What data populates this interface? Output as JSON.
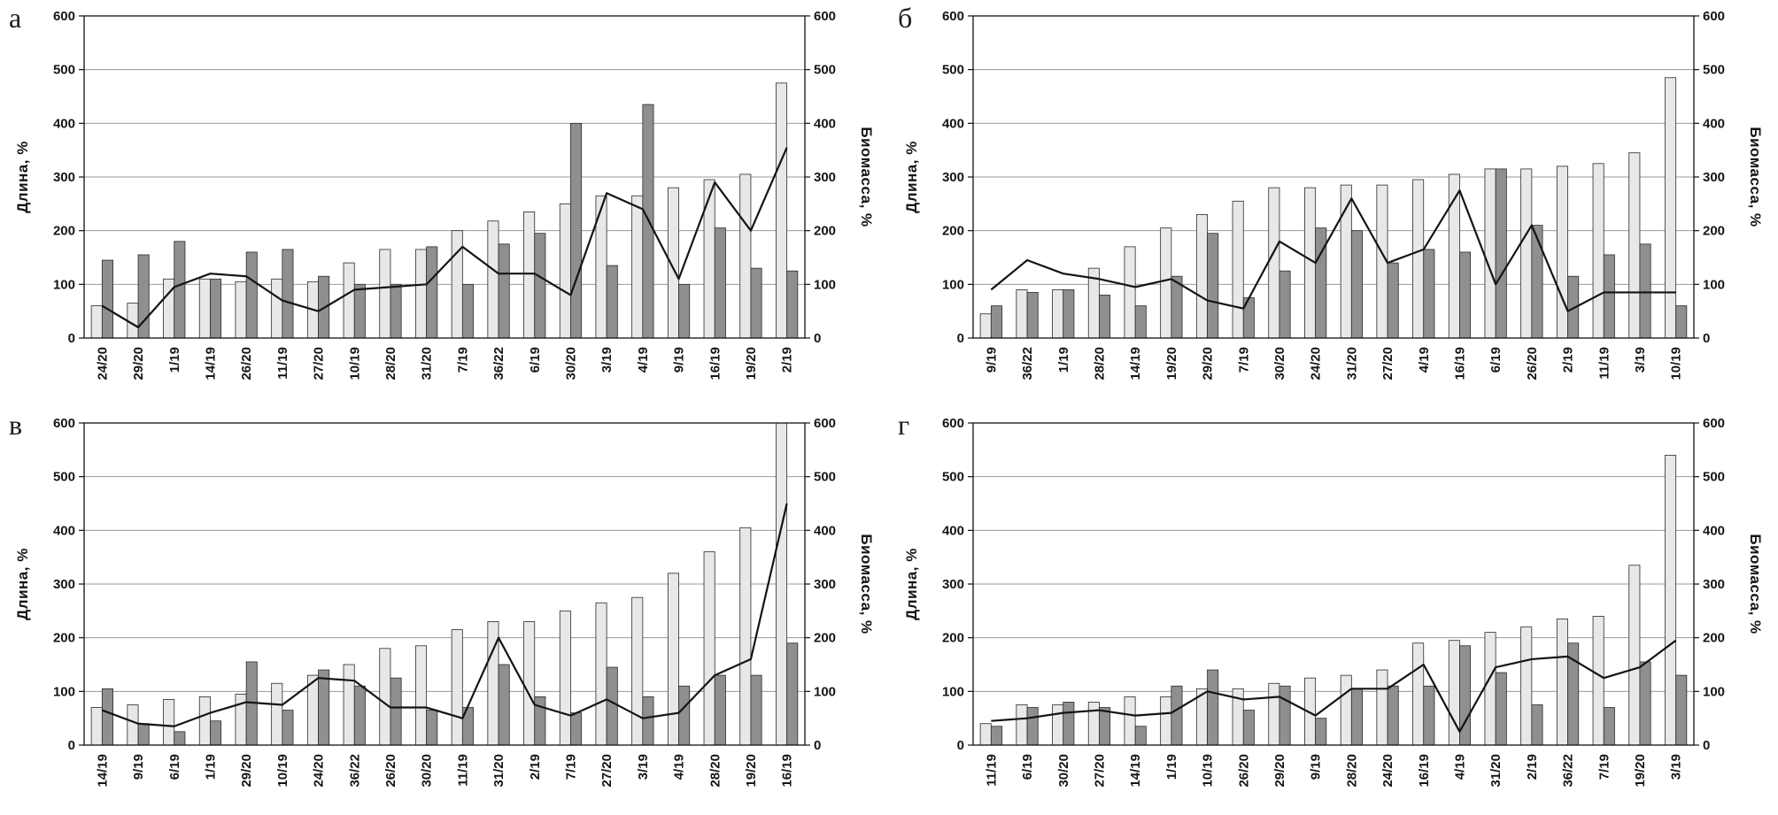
{
  "chart_data": [
    {
      "id": "a",
      "type": "bar",
      "corner_label": "а",
      "left_axis_label": "Длина, %",
      "right_axis_label": "Биомасса, %",
      "ylim": [
        0,
        600
      ],
      "y_ticks": [
        0,
        100,
        200,
        300,
        400,
        500,
        600
      ],
      "grid": true,
      "legend": "none",
      "categories": [
        "24/20",
        "29/20",
        "1/19",
        "14/19",
        "26/20",
        "11/19",
        "27/20",
        "10/19",
        "28/20",
        "31/20",
        "7/19",
        "36/22",
        "6/19",
        "30/20",
        "3/19",
        "4/19",
        "9/19",
        "16/19",
        "19/20",
        "2/19"
      ],
      "series": [
        {
          "name": "length-light-bars",
          "type": "bar",
          "color": "#e8e8e8",
          "values": [
            60,
            65,
            110,
            110,
            105,
            110,
            105,
            140,
            165,
            165,
            200,
            218,
            235,
            250,
            265,
            265,
            280,
            295,
            305,
            475
          ]
        },
        {
          "name": "biomass-dark-bars",
          "type": "bar",
          "color": "#8f8f8f",
          "values": [
            145,
            155,
            180,
            110,
            160,
            165,
            115,
            100,
            100,
            170,
            100,
            175,
            195,
            400,
            135,
            435,
            100,
            205,
            130,
            125
          ]
        },
        {
          "name": "overlay-line",
          "type": "line",
          "color": "#141414",
          "values": [
            60,
            20,
            95,
            120,
            115,
            70,
            50,
            90,
            95,
            100,
            170,
            120,
            120,
            80,
            270,
            240,
            110,
            290,
            200,
            355
          ]
        }
      ]
    },
    {
      "id": "b",
      "type": "bar",
      "corner_label": "б",
      "left_axis_label": "Длина, %",
      "right_axis_label": "Биомасса, %",
      "ylim": [
        0,
        600
      ],
      "y_ticks": [
        0,
        100,
        200,
        300,
        400,
        500,
        600
      ],
      "grid": true,
      "legend": "none",
      "categories": [
        "9/19",
        "36/22",
        "1/19",
        "28/20",
        "14/19",
        "19/20",
        "29/20",
        "7/19",
        "30/20",
        "24/20",
        "31/20",
        "27/20",
        "4/19",
        "16/19",
        "6/19",
        "26/20",
        "2/19",
        "11/19",
        "3/19",
        "10/19"
      ],
      "series": [
        {
          "name": "length-light-bars",
          "type": "bar",
          "color": "#e8e8e8",
          "values": [
            45,
            90,
            90,
            130,
            170,
            205,
            230,
            255,
            280,
            280,
            285,
            285,
            295,
            305,
            315,
            315,
            320,
            325,
            345,
            485
          ]
        },
        {
          "name": "biomass-dark-bars",
          "type": "bar",
          "color": "#8f8f8f",
          "values": [
            60,
            85,
            90,
            80,
            60,
            115,
            195,
            75,
            125,
            205,
            200,
            140,
            165,
            160,
            315,
            210,
            115,
            155,
            175,
            60
          ]
        },
        {
          "name": "overlay-line",
          "type": "line",
          "color": "#141414",
          "values": [
            90,
            145,
            120,
            110,
            95,
            110,
            70,
            55,
            180,
            140,
            260,
            140,
            165,
            275,
            100,
            210,
            50,
            85,
            85,
            85
          ]
        }
      ]
    },
    {
      "id": "v",
      "type": "bar",
      "corner_label": "в",
      "left_axis_label": "Длина, %",
      "right_axis_label": "Биомасса, %",
      "ylim": [
        0,
        600
      ],
      "y_ticks": [
        0,
        100,
        200,
        300,
        400,
        500,
        600
      ],
      "grid": true,
      "legend": "none",
      "categories": [
        "14/19",
        "9/19",
        "6/19",
        "1/19",
        "29/20",
        "10/19",
        "24/20",
        "36/22",
        "26/20",
        "30/20",
        "11/19",
        "31/20",
        "2/19",
        "7/19",
        "27/20",
        "3/19",
        "4/19",
        "28/20",
        "19/20",
        "16/19"
      ],
      "series": [
        {
          "name": "length-light-bars",
          "type": "bar",
          "color": "#e8e8e8",
          "values": [
            70,
            75,
            85,
            90,
            95,
            115,
            130,
            150,
            180,
            185,
            215,
            230,
            230,
            250,
            265,
            275,
            320,
            360,
            405,
            600
          ]
        },
        {
          "name": "biomass-dark-bars",
          "type": "bar",
          "color": "#8f8f8f",
          "values": [
            105,
            40,
            25,
            45,
            155,
            65,
            140,
            110,
            125,
            65,
            70,
            150,
            90,
            60,
            145,
            90,
            110,
            130,
            130,
            190
          ]
        },
        {
          "name": "overlay-line",
          "type": "line",
          "color": "#141414",
          "values": [
            65,
            40,
            35,
            60,
            80,
            75,
            125,
            120,
            70,
            70,
            50,
            200,
            75,
            55,
            85,
            50,
            60,
            130,
            160,
            450
          ]
        }
      ]
    },
    {
      "id": "g",
      "type": "bar",
      "corner_label": "г",
      "left_axis_label": "Длина, %",
      "right_axis_label": "Биомасса, %",
      "ylim": [
        0,
        600
      ],
      "y_ticks": [
        0,
        100,
        200,
        300,
        400,
        500,
        600
      ],
      "grid": true,
      "legend": "none",
      "categories": [
        "11/19",
        "6/19",
        "30/20",
        "27/20",
        "14/19",
        "1/19",
        "10/19",
        "26/20",
        "29/20",
        "9/19",
        "28/20",
        "24/20",
        "16/19",
        "4/19",
        "31/20",
        "2/19",
        "36/22",
        "7/19",
        "19/20",
        "3/19"
      ],
      "series": [
        {
          "name": "length-light-bars",
          "type": "bar",
          "color": "#e8e8e8",
          "values": [
            40,
            75,
            75,
            80,
            90,
            90,
            105,
            105,
            115,
            125,
            130,
            140,
            190,
            195,
            210,
            220,
            235,
            240,
            335,
            540
          ]
        },
        {
          "name": "biomass-dark-bars",
          "type": "bar",
          "color": "#8f8f8f",
          "values": [
            35,
            70,
            80,
            70,
            35,
            110,
            140,
            65,
            110,
            50,
            105,
            110,
            110,
            185,
            135,
            75,
            190,
            70,
            155,
            130
          ]
        },
        {
          "name": "overlay-line",
          "type": "line",
          "color": "#141414",
          "values": [
            45,
            50,
            60,
            65,
            55,
            60,
            100,
            85,
            90,
            55,
            105,
            105,
            150,
            25,
            145,
            160,
            165,
            125,
            145,
            195
          ]
        }
      ]
    }
  ]
}
